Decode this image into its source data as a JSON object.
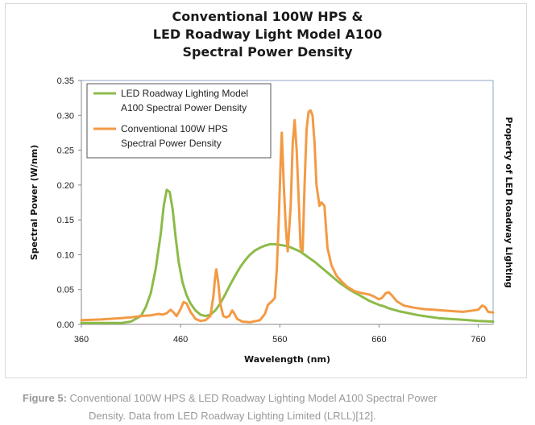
{
  "figure": {
    "caption_label": "Figure 5:",
    "caption_line1": "Conventional 100W HPS & LED Roadway Lighting Model A100 Spectral Power",
    "caption_line2": "Density. Data from LED Roadway Lighting Limited (LRLL)[12]."
  },
  "chart_data": {
    "type": "line",
    "title": [
      "Conventional 100W HPS &",
      "LED Roadway Light Model A100",
      "Spectral Power Density"
    ],
    "xlabel": "Wavelength (nm)",
    "ylabel": "Spectral Power (W/nm)",
    "y2label": "Property of LED Roadway Lighting",
    "xlim": [
      360,
      775
    ],
    "ylim": [
      0,
      0.35
    ],
    "xticks": [
      "360",
      "460",
      "560",
      "660",
      "760"
    ],
    "yticks": [
      "0.00",
      "0.05",
      "0.10",
      "0.15",
      "0.20",
      "0.25",
      "0.30",
      "0.35"
    ],
    "grid": false,
    "legend_position": "top-left",
    "series": [
      {
        "name": "LED Roadway Lighting Model A100 Spectral Power Density",
        "legend_lines": [
          "LED Roadway Lighting Model",
          "A100 Spectral Power Density"
        ],
        "color": "#8dbb49",
        "points": [
          [
            360,
            0.002
          ],
          [
            380,
            0.002
          ],
          [
            400,
            0.002
          ],
          [
            410,
            0.004
          ],
          [
            420,
            0.012
          ],
          [
            425,
            0.025
          ],
          [
            430,
            0.045
          ],
          [
            435,
            0.08
          ],
          [
            440,
            0.13
          ],
          [
            443,
            0.17
          ],
          [
            446,
            0.193
          ],
          [
            449,
            0.19
          ],
          [
            452,
            0.165
          ],
          [
            455,
            0.125
          ],
          [
            458,
            0.09
          ],
          [
            462,
            0.06
          ],
          [
            466,
            0.042
          ],
          [
            470,
            0.03
          ],
          [
            475,
            0.02
          ],
          [
            480,
            0.014
          ],
          [
            485,
            0.012
          ],
          [
            490,
            0.014
          ],
          [
            495,
            0.02
          ],
          [
            500,
            0.03
          ],
          [
            505,
            0.043
          ],
          [
            510,
            0.057
          ],
          [
            515,
            0.07
          ],
          [
            520,
            0.082
          ],
          [
            525,
            0.092
          ],
          [
            530,
            0.1
          ],
          [
            535,
            0.106
          ],
          [
            540,
            0.11
          ],
          [
            545,
            0.113
          ],
          [
            550,
            0.115
          ],
          [
            555,
            0.115
          ],
          [
            560,
            0.114
          ],
          [
            565,
            0.113
          ],
          [
            570,
            0.111
          ],
          [
            575,
            0.108
          ],
          [
            580,
            0.105
          ],
          [
            585,
            0.1
          ],
          [
            590,
            0.095
          ],
          [
            595,
            0.09
          ],
          [
            600,
            0.084
          ],
          [
            605,
            0.078
          ],
          [
            610,
            0.072
          ],
          [
            615,
            0.066
          ],
          [
            620,
            0.06
          ],
          [
            625,
            0.055
          ],
          [
            630,
            0.05
          ],
          [
            635,
            0.046
          ],
          [
            640,
            0.042
          ],
          [
            645,
            0.038
          ],
          [
            650,
            0.034
          ],
          [
            655,
            0.031
          ],
          [
            660,
            0.028
          ],
          [
            665,
            0.026
          ],
          [
            670,
            0.023
          ],
          [
            675,
            0.021
          ],
          [
            680,
            0.019
          ],
          [
            690,
            0.016
          ],
          [
            700,
            0.013
          ],
          [
            710,
            0.011
          ],
          [
            720,
            0.009
          ],
          [
            730,
            0.008
          ],
          [
            740,
            0.007
          ],
          [
            750,
            0.006
          ],
          [
            760,
            0.005
          ],
          [
            775,
            0.004
          ]
        ]
      },
      {
        "name": "Conventional 100W HPS Spectral Power Density",
        "legend_lines": [
          "Conventional 100W HPS",
          "Spectral Power Density"
        ],
        "color": "#f39a45",
        "points": [
          [
            360,
            0.006
          ],
          [
            380,
            0.007
          ],
          [
            400,
            0.009
          ],
          [
            410,
            0.01
          ],
          [
            420,
            0.012
          ],
          [
            430,
            0.013
          ],
          [
            438,
            0.015
          ],
          [
            442,
            0.014
          ],
          [
            446,
            0.016
          ],
          [
            450,
            0.021
          ],
          [
            453,
            0.017
          ],
          [
            456,
            0.012
          ],
          [
            460,
            0.022
          ],
          [
            463,
            0.032
          ],
          [
            466,
            0.03
          ],
          [
            470,
            0.018
          ],
          [
            475,
            0.008
          ],
          [
            480,
            0.005
          ],
          [
            485,
            0.006
          ],
          [
            490,
            0.012
          ],
          [
            493,
            0.04
          ],
          [
            495,
            0.07
          ],
          [
            496,
            0.079
          ],
          [
            498,
            0.06
          ],
          [
            500,
            0.03
          ],
          [
            503,
            0.012
          ],
          [
            506,
            0.01
          ],
          [
            509,
            0.012
          ],
          [
            512,
            0.02
          ],
          [
            514,
            0.016
          ],
          [
            517,
            0.008
          ],
          [
            522,
            0.004
          ],
          [
            530,
            0.003
          ],
          [
            540,
            0.006
          ],
          [
            545,
            0.015
          ],
          [
            548,
            0.028
          ],
          [
            552,
            0.033
          ],
          [
            555,
            0.038
          ],
          [
            557,
            0.08
          ],
          [
            559,
            0.15
          ],
          [
            561,
            0.24
          ],
          [
            562,
            0.275
          ],
          [
            564,
            0.2
          ],
          [
            566,
            0.14
          ],
          [
            568,
            0.105
          ],
          [
            571,
            0.17
          ],
          [
            573,
            0.26
          ],
          [
            575,
            0.293
          ],
          [
            577,
            0.25
          ],
          [
            579,
            0.18
          ],
          [
            581,
            0.11
          ],
          [
            583,
            0.105
          ],
          [
            585,
            0.2
          ],
          [
            587,
            0.28
          ],
          [
            589,
            0.305
          ],
          [
            591,
            0.307
          ],
          [
            593,
            0.3
          ],
          [
            595,
            0.26
          ],
          [
            597,
            0.2
          ],
          [
            600,
            0.17
          ],
          [
            602,
            0.175
          ],
          [
            605,
            0.17
          ],
          [
            608,
            0.11
          ],
          [
            612,
            0.085
          ],
          [
            617,
            0.07
          ],
          [
            622,
            0.062
          ],
          [
            628,
            0.054
          ],
          [
            635,
            0.048
          ],
          [
            642,
            0.045
          ],
          [
            650,
            0.043
          ],
          [
            655,
            0.04
          ],
          [
            660,
            0.036
          ],
          [
            663,
            0.038
          ],
          [
            667,
            0.045
          ],
          [
            670,
            0.046
          ],
          [
            674,
            0.04
          ],
          [
            678,
            0.033
          ],
          [
            685,
            0.027
          ],
          [
            695,
            0.024
          ],
          [
            705,
            0.022
          ],
          [
            715,
            0.021
          ],
          [
            725,
            0.02
          ],
          [
            735,
            0.019
          ],
          [
            745,
            0.018
          ],
          [
            755,
            0.02
          ],
          [
            760,
            0.021
          ],
          [
            764,
            0.027
          ],
          [
            767,
            0.025
          ],
          [
            770,
            0.018
          ],
          [
            775,
            0.017
          ]
        ]
      }
    ]
  }
}
